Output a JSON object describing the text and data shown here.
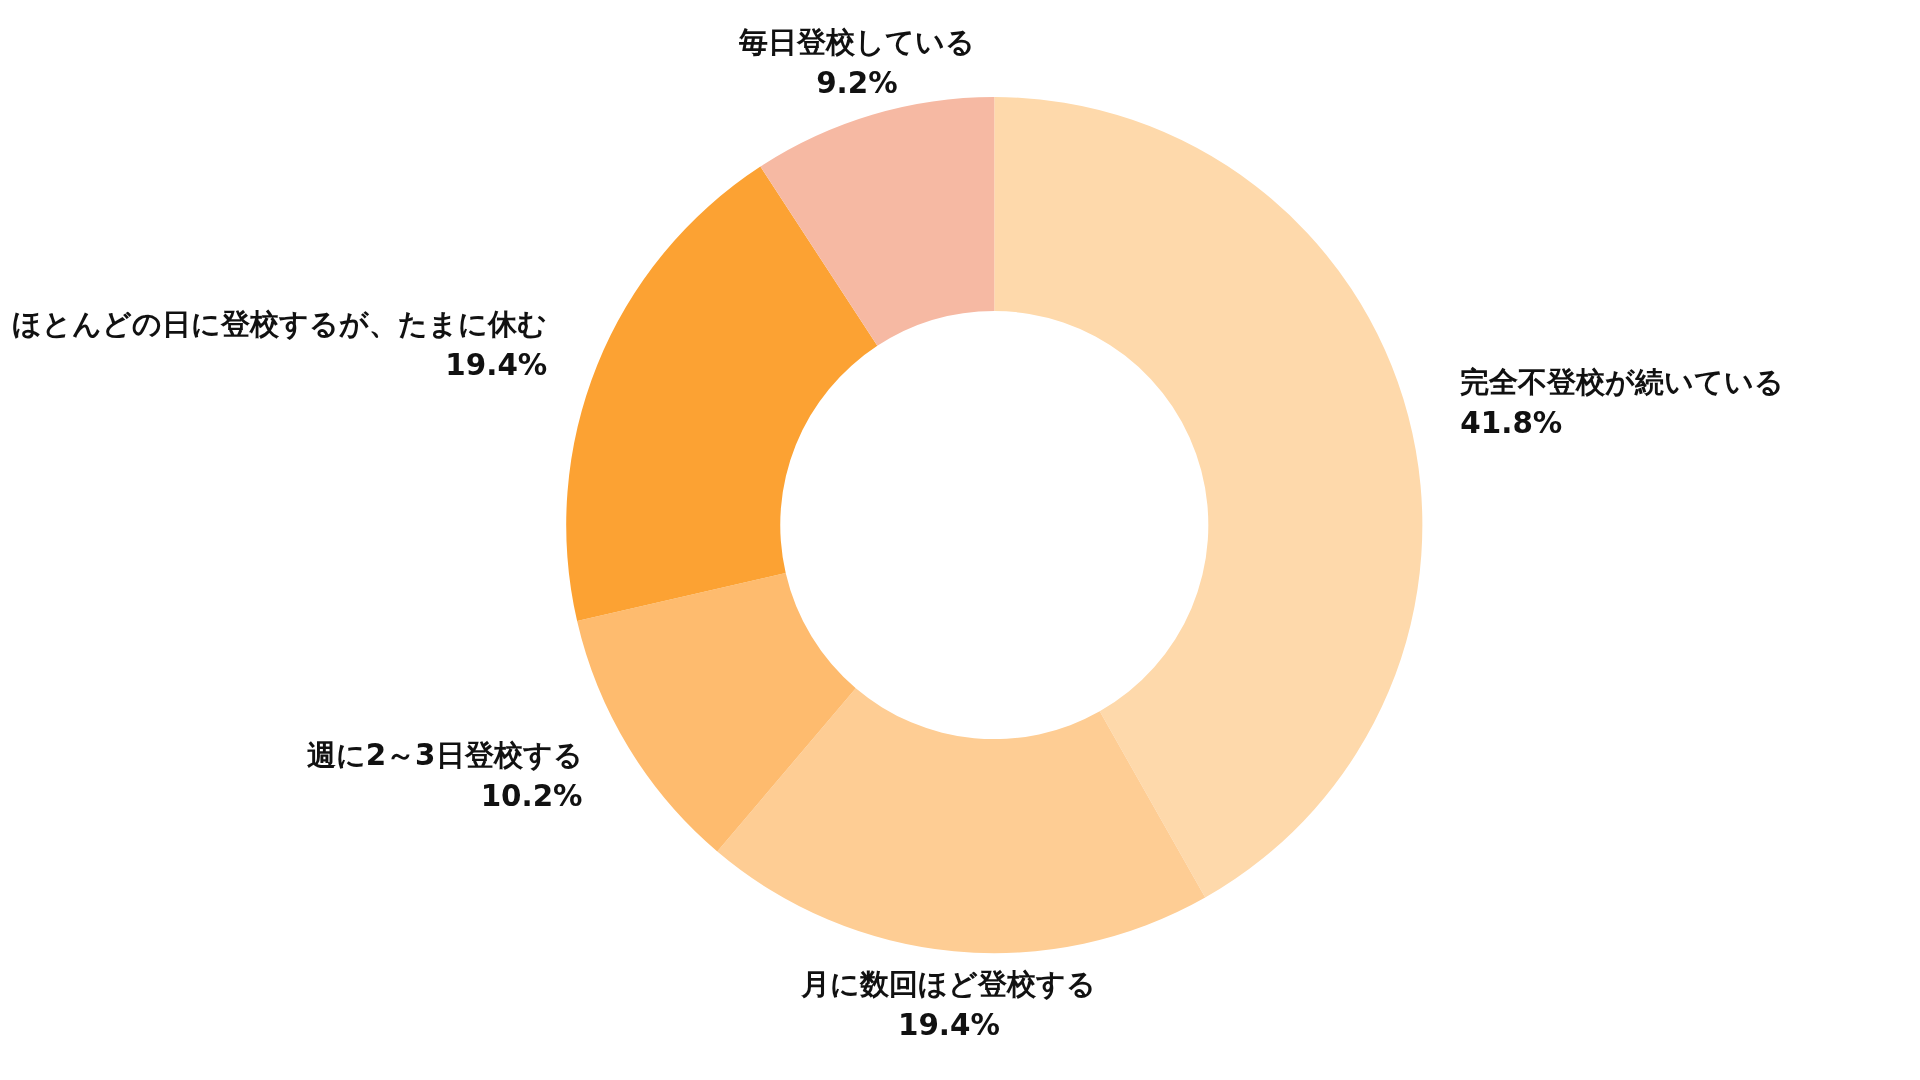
{
  "chart_data": {
    "type": "donut",
    "categories": [
      "完全不登校が続いている",
      "月に数回ほど登校する",
      "週に2～3日登校する",
      "ほとんどの日に登校するが、たまに休む",
      "毎日登校している"
    ],
    "values": [
      41.8,
      19.4,
      10.2,
      19.4,
      9.2
    ],
    "value_labels": [
      "41.8%",
      "19.4%",
      "10.2%",
      "19.4%",
      "9.2%"
    ],
    "colors": [
      "#fed9ab",
      "#fecd94",
      "#febb6e",
      "#fca233",
      "#f6b9a3"
    ]
  }
}
